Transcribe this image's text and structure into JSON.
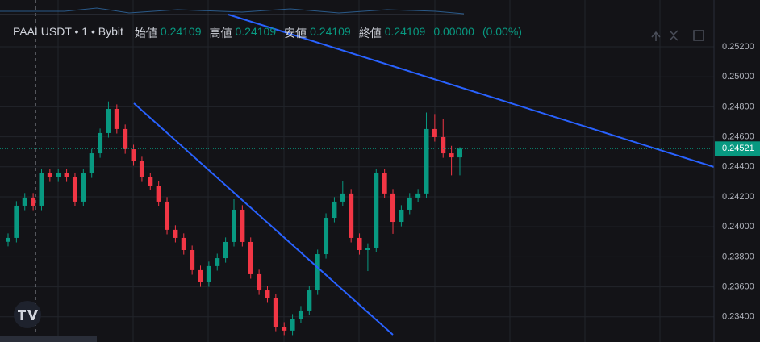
{
  "chart_data": {
    "type": "candlestick",
    "symbol": "PAALUSDT • 1 • Bybit",
    "ohlc_labels": [
      "始値",
      "高値",
      "安値",
      "終値"
    ],
    "ohlc_values": [
      "0.24109",
      "0.24109",
      "0.24109",
      "0.24109"
    ],
    "change": "0.00000",
    "change_percent": "(0.00%)",
    "last_price": 0.24521,
    "up_color": "#089981",
    "down_color": "#f23645",
    "ylim": [
      0.23232,
      0.25512
    ],
    "yticks": [
      {
        "value": 0.252,
        "label": "0.25200"
      },
      {
        "value": 0.25,
        "label": "0.25000"
      },
      {
        "value": 0.248,
        "label": "0.24800"
      },
      {
        "value": 0.246,
        "label": "0.24600"
      },
      {
        "value": 0.244,
        "label": "0.24400"
      },
      {
        "value": 0.242,
        "label": "0.24200"
      },
      {
        "value": 0.24,
        "label": "0.24000"
      },
      {
        "value": 0.238,
        "label": "0.23800"
      },
      {
        "value": 0.236,
        "label": "0.23600"
      },
      {
        "value": 0.234,
        "label": "0.23400"
      }
    ],
    "grid": true,
    "open": [
      0.239,
      0.23926,
      0.24141,
      0.24195,
      0.24141,
      0.24356,
      0.24329,
      0.24356,
      0.24329,
      0.24168,
      0.24356,
      0.2449,
      0.24625,
      0.24786,
      0.24652,
      0.24517,
      0.24437,
      0.24329,
      0.24275,
      0.24168,
      0.2398,
      0.23926,
      0.23845,
      0.23711,
      0.2363,
      0.23738,
      0.23791,
      0.23899,
      0.24114,
      0.23899,
      0.23684,
      0.23576,
      0.23523,
      0.23334,
      0.23308,
      0.23388,
      0.23442,
      0.23576,
      0.23818,
      0.2406,
      0.24168,
      0.24222,
      0.23926,
      0.23845,
      0.2386,
      0.24356,
      0.24222,
      0.24033,
      0.24114,
      0.24195,
      0.24222,
      0.24652,
      0.24598,
      0.2449,
      0.24463
    ],
    "high": [
      0.23956,
      0.24171,
      0.24225,
      0.24225,
      0.24386,
      0.24386,
      0.24386,
      0.24386,
      0.24359,
      0.24386,
      0.2452,
      0.24655,
      0.24836,
      0.24816,
      0.24682,
      0.24547,
      0.24467,
      0.24359,
      0.24305,
      0.24198,
      0.2401,
      0.23956,
      0.23875,
      0.23741,
      0.23768,
      0.23821,
      0.23929,
      0.24184,
      0.24144,
      0.23929,
      0.23714,
      0.23606,
      0.23553,
      0.23364,
      0.23418,
      0.23472,
      0.23606,
      0.23848,
      0.2409,
      0.24198,
      0.24302,
      0.24252,
      0.23956,
      0.2389,
      0.24386,
      0.24386,
      0.24252,
      0.24144,
      0.24225,
      0.24252,
      0.24762,
      0.24752,
      0.24718,
      0.2454,
      0.24531
    ],
    "low": [
      0.2387,
      0.23896,
      0.24111,
      0.24111,
      0.24111,
      0.24299,
      0.24299,
      0.24299,
      0.24138,
      0.24138,
      0.24326,
      0.2446,
      0.24595,
      0.24622,
      0.24487,
      0.24407,
      0.24299,
      0.24245,
      0.24138,
      0.2395,
      0.23896,
      0.23815,
      0.23681,
      0.236,
      0.236,
      0.23708,
      0.23761,
      0.23869,
      0.23869,
      0.23654,
      0.23546,
      0.23493,
      0.23304,
      0.23278,
      0.23278,
      0.23358,
      0.23412,
      0.23546,
      0.23788,
      0.2403,
      0.24138,
      0.23896,
      0.23815,
      0.23705,
      0.2383,
      0.24192,
      0.23953,
      0.24003,
      0.24084,
      0.24165,
      0.24192,
      0.24568,
      0.2446,
      0.24343,
      0.24343
    ],
    "close": [
      0.23926,
      0.24141,
      0.24195,
      0.24141,
      0.24356,
      0.24329,
      0.24356,
      0.24329,
      0.24168,
      0.24356,
      0.2449,
      0.24625,
      0.24786,
      0.24652,
      0.24517,
      0.24437,
      0.24329,
      0.24275,
      0.24168,
      0.2398,
      0.23926,
      0.23845,
      0.23711,
      0.2363,
      0.23738,
      0.23791,
      0.23899,
      0.24114,
      0.23899,
      0.23684,
      0.23576,
      0.23523,
      0.23334,
      0.23308,
      0.23388,
      0.23442,
      0.23576,
      0.23818,
      0.2406,
      0.24168,
      0.24222,
      0.23926,
      0.23845,
      0.2386,
      0.24356,
      0.24222,
      0.24033,
      0.24114,
      0.24195,
      0.24222,
      0.24652,
      0.24598,
      0.2449,
      0.24463,
      0.24521
    ]
  }
}
